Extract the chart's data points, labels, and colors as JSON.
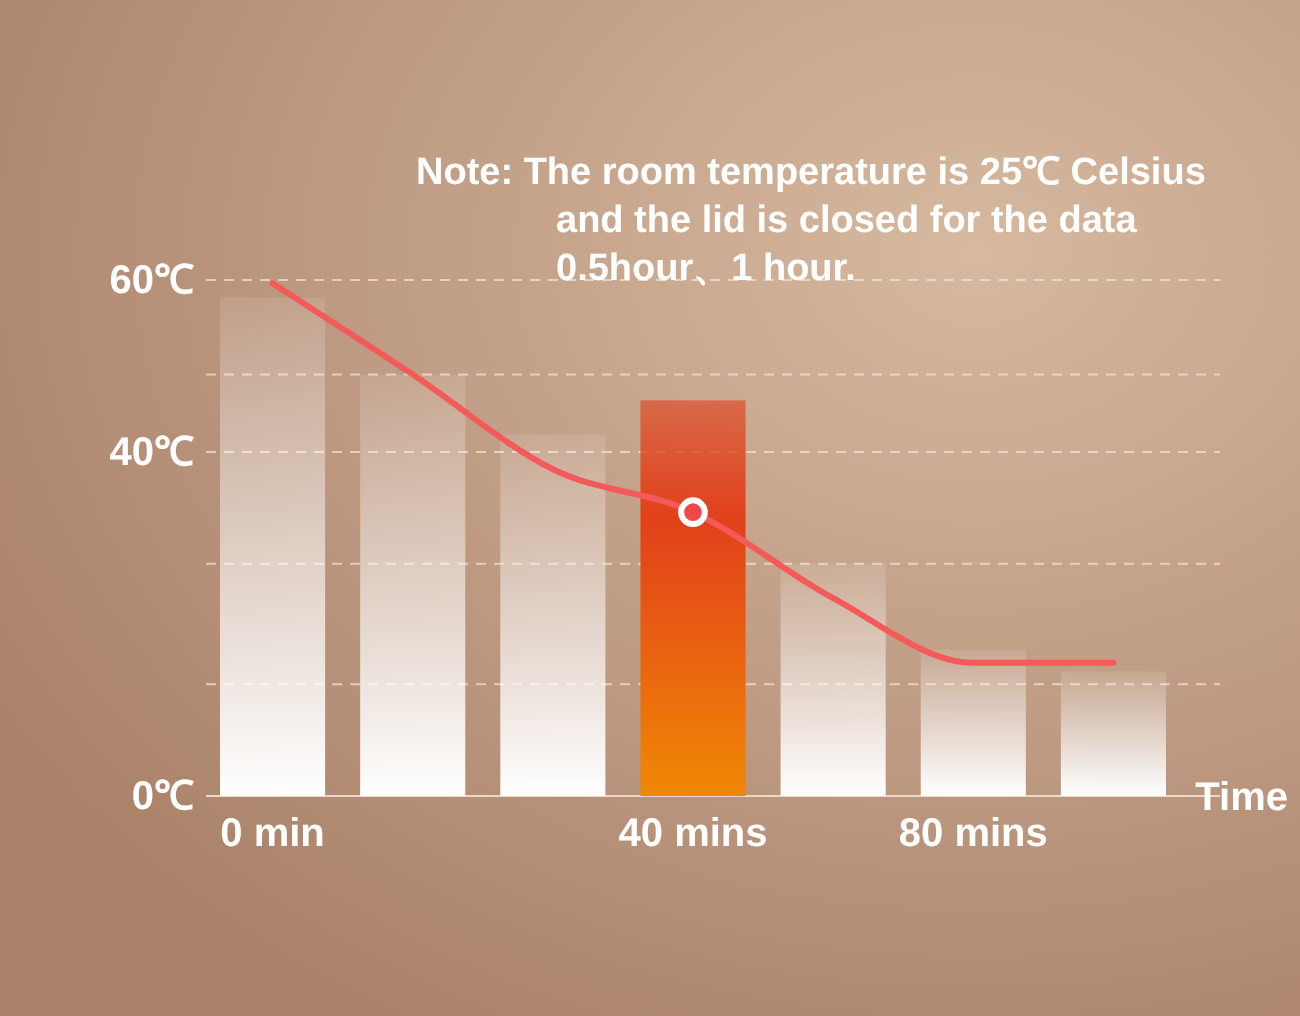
{
  "chart_data": {
    "type": "bar",
    "annotations": [
      "Note: The room temperature is 25℃ Celsius and the lid is closed for the data 0.5hour、1 hour."
    ],
    "xlabel": "Time",
    "categories": [
      "0 min",
      null,
      null,
      "40 mins",
      null,
      "80 mins",
      null
    ],
    "ylim": [
      0,
      60
    ],
    "yticks": [
      {
        "value": 0,
        "label": "0℃"
      },
      {
        "value": 13,
        "label": null
      },
      {
        "value": 27,
        "label": null
      },
      {
        "value": 40,
        "label": "40℃"
      },
      {
        "value": 49,
        "label": null
      },
      {
        "value": 60,
        "label": "60℃"
      }
    ],
    "grid": "y",
    "series": [
      {
        "colors": [
          "#ffffff",
          "#ffffff",
          "#ffffff",
          "#e2401a",
          "#ffffff",
          "#ffffff",
          "#ffffff"
        ],
        "values": [
          58,
          49,
          42,
          46,
          27,
          17,
          14.5
        ]
      },
      {
        "type": "line",
        "color": "#f45a5a",
        "line_style": "solid",
        "marker": "none",
        "values": [
          59.6,
          49,
          38,
          33,
          23,
          15.5,
          15.5
        ]
      },
      {
        "type": "scatter",
        "color": "#f04848",
        "marker": "circle",
        "x": [
          "40 mins"
        ],
        "values": [
          33
        ]
      }
    ]
  }
}
